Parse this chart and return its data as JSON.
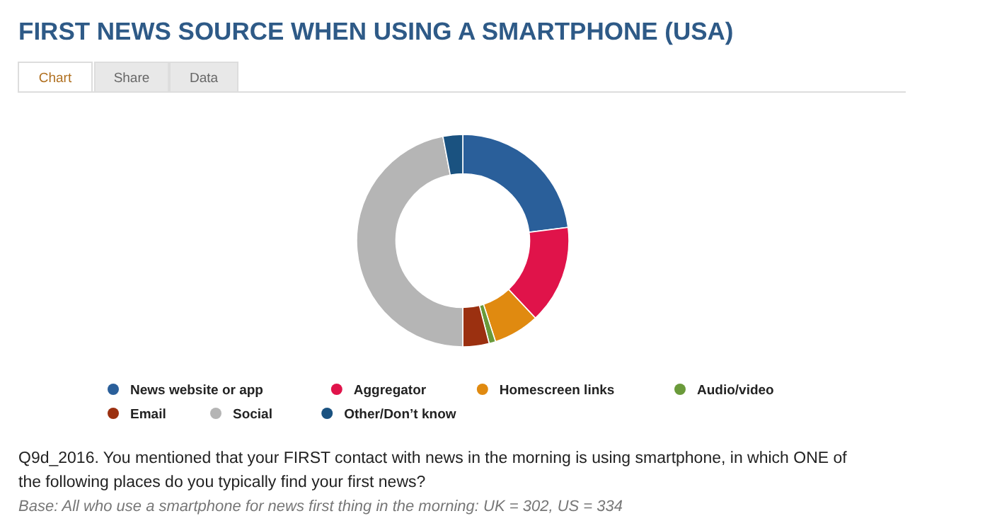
{
  "chart_data": {
    "type": "donut",
    "title": "FIRST NEWS SOURCE WHEN USING A SMARTPHONE (USA)",
    "categories": [
      "News website or app",
      "Aggregator",
      "Homescreen links",
      "Audio/video",
      "Email",
      "Social",
      "Other/Don’t know"
    ],
    "values": [
      23,
      15,
      7,
      1,
      4,
      47,
      3
    ],
    "colors": [
      "#2a5f9a",
      "#e0134a",
      "#e08a10",
      "#6a9a3a",
      "#9b3010",
      "#b5b5b5",
      "#1a5280"
    ],
    "legend": "bottom",
    "annotations": [
      "Chart",
      "Share",
      "Data",
      "Q9d_2016. You mentioned that your FIRST contact with news in the morning is using smartphone, in which ONE of the following places do you typically find your first news?",
      "Base: All who use a smartphone for news first thing in the morning: UK = 302, US = 334"
    ]
  }
}
